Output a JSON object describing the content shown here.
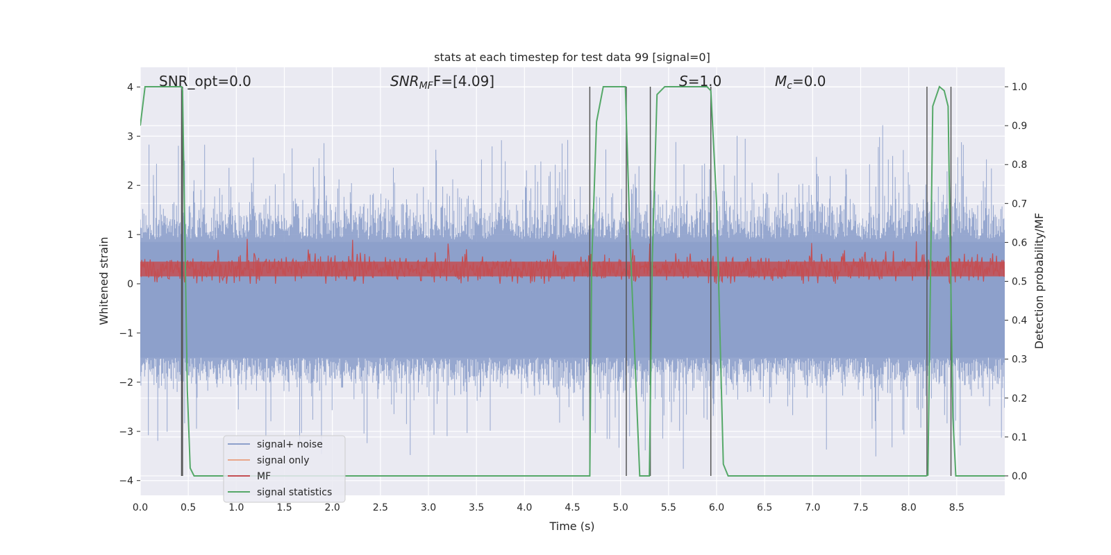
{
  "chart_data": {
    "type": "line",
    "title": "stats at each timestep for test data 99 [signal=0]",
    "xlabel": "Time (s)",
    "ylabel": "Whitened strain",
    "y2label": "Detection probability/MF",
    "xlim": [
      0.0,
      9.0
    ],
    "ylim": [
      -4.3,
      4.4
    ],
    "y2lim": [
      -0.05,
      1.05
    ],
    "xticks": [
      "0.0",
      "0.5",
      "1.0",
      "1.5",
      "2.0",
      "2.5",
      "3.0",
      "3.5",
      "4.0",
      "4.5",
      "5.0",
      "5.5",
      "6.0",
      "6.5",
      "7.0",
      "7.5",
      "8.0",
      "8.5"
    ],
    "yticks": [
      "4",
      "3",
      "2",
      "1",
      "0",
      "−1",
      "−2",
      "−3",
      "−4"
    ],
    "y2ticks": [
      "1.0",
      "0.9",
      "0.8",
      "0.7",
      "0.6",
      "0.5",
      "0.4",
      "0.3",
      "0.2",
      "0.1",
      "0.0"
    ],
    "grid": true,
    "legend_position": "lower-left",
    "annotations": {
      "snr_opt": "SNR_opt=0.0",
      "snr_mf_main": "SNR",
      "snr_mf_sub": "MF",
      "snr_mf_rest": "F=[4.09]",
      "s_main": "S",
      "s_rest": "=1.0",
      "mc_main": "M",
      "mc_sub": "c",
      "mc_rest": "=0.0"
    },
    "series": [
      {
        "name": "signal+ noise",
        "color": "#8da0cb",
        "noise_envelope": [
          -3.9,
          4.0
        ]
      },
      {
        "name": "signal only",
        "color": "#e9a68a",
        "values": []
      },
      {
        "name": "MF",
        "color": "#c44e52",
        "range": [
          0.0,
          0.95
        ]
      },
      {
        "name": "signal statistics",
        "color": "#55a868",
        "x": [
          0.0,
          0.05,
          0.43,
          0.44,
          0.49,
          0.52,
          0.56,
          0.6,
          4.68,
          4.7,
          4.75,
          4.82,
          5.05,
          5.1,
          5.2,
          5.3,
          5.33,
          5.38,
          5.46,
          5.9,
          5.94,
          6.0,
          6.07,
          6.12,
          6.2,
          8.18,
          8.2,
          8.25,
          8.32,
          8.37,
          8.41,
          8.46,
          8.49,
          8.6,
          9.0
        ],
        "values": [
          0.9,
          1.0,
          1.0,
          0.99,
          0.22,
          0.02,
          0.0,
          0.0,
          0.0,
          0.55,
          0.91,
          1.0,
          1.0,
          0.6,
          0.0,
          0.0,
          0.55,
          0.98,
          1.0,
          1.0,
          0.99,
          0.7,
          0.03,
          0.0,
          0.0,
          0.0,
          0.002,
          0.95,
          1.0,
          0.99,
          0.95,
          0.15,
          0.0,
          0.0,
          0.0
        ]
      }
    ],
    "vertical_lines": [
      0.43,
      0.44,
      4.68,
      5.06,
      5.31,
      5.94,
      8.19,
      8.44
    ]
  }
}
